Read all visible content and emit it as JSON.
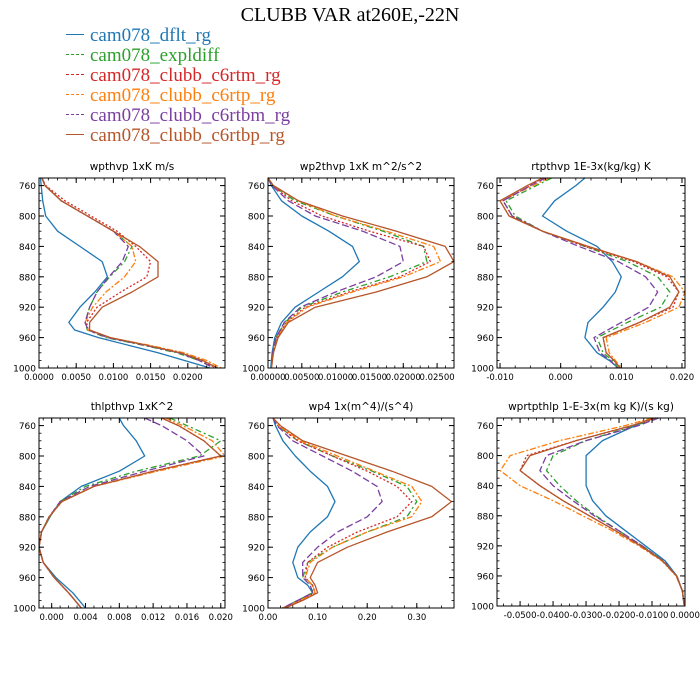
{
  "title": "CLUBB VAR at260E,-22N",
  "series_meta": [
    {
      "name": "cam078_dflt_rg",
      "color": "#1f77b4",
      "dash": ""
    },
    {
      "name": "cam078_expldiff",
      "color": "#2ca02c",
      "dash": "6,3,2,3"
    },
    {
      "name": "cam078_clubb_c6rtm_rg",
      "color": "#d62728",
      "dash": "2,2"
    },
    {
      "name": "cam078_clubb_c6rtp_rg",
      "color": "#ff7f0e",
      "dash": "6,2,2,2"
    },
    {
      "name": "cam078_clubb_c6rtbm_rg",
      "color": "#7b3fa0",
      "dash": "7,3"
    },
    {
      "name": "cam078_clubb_c6rtbp_rg",
      "color": "#b5562a",
      "dash": ""
    }
  ],
  "chart_data": [
    {
      "type": "line",
      "title": "wpthvp  1xK m/s",
      "xlim": [
        0,
        0.025
      ],
      "ylim": [
        1000,
        750
      ],
      "xticks": [
        "0.0000",
        "0.0050",
        "0.0100",
        "0.0150",
        "0.0200"
      ],
      "xtick_values": [
        0,
        0.005,
        0.01,
        0.015,
        0.02
      ],
      "yticks": [
        760,
        800,
        840,
        880,
        920,
        960,
        1000
      ],
      "y": [
        750,
        760,
        780,
        800,
        820,
        840,
        860,
        880,
        900,
        920,
        940,
        950,
        960,
        970,
        980,
        990,
        1000
      ],
      "series": [
        {
          "name": "cam078_dflt_rg",
          "values": [
            0.0002,
            0.0003,
            0.0005,
            0.0009,
            0.0025,
            0.0055,
            0.0085,
            0.0092,
            0.0075,
            0.0055,
            0.004,
            0.0048,
            0.008,
            0.012,
            0.016,
            0.0195,
            0.023
          ]
        },
        {
          "name": "cam078_expldiff",
          "values": [
            0.0004,
            0.0008,
            0.003,
            0.0065,
            0.01,
            0.0125,
            0.0115,
            0.0095,
            0.0078,
            0.0068,
            0.0062,
            0.0065,
            0.009,
            0.014,
            0.0185,
            0.0215,
            0.0235
          ]
        },
        {
          "name": "cam078_clubb_c6rtm_rg",
          "values": [
            0.0004,
            0.0009,
            0.0035,
            0.007,
            0.0105,
            0.013,
            0.015,
            0.0145,
            0.011,
            0.0078,
            0.0064,
            0.0066,
            0.0095,
            0.0145,
            0.019,
            0.0218,
            0.0238
          ]
        },
        {
          "name": "cam078_clubb_c6rtp_rg",
          "values": [
            0.0004,
            0.0008,
            0.003,
            0.0065,
            0.01,
            0.0125,
            0.013,
            0.0115,
            0.009,
            0.0072,
            0.0062,
            0.0066,
            0.0095,
            0.0148,
            0.0195,
            0.0225,
            0.0245
          ]
        },
        {
          "name": "cam078_clubb_c6rtbm_rg",
          "values": [
            0.0004,
            0.0008,
            0.003,
            0.0065,
            0.01,
            0.012,
            0.0112,
            0.0094,
            0.0078,
            0.0068,
            0.0062,
            0.0066,
            0.0092,
            0.0142,
            0.0188,
            0.0215,
            0.0235
          ]
        },
        {
          "name": "cam078_clubb_c6rtbp_rg",
          "values": [
            0.0004,
            0.0008,
            0.003,
            0.0065,
            0.01,
            0.0135,
            0.016,
            0.016,
            0.0125,
            0.0085,
            0.0068,
            0.0068,
            0.0096,
            0.0145,
            0.019,
            0.022,
            0.024
          ]
        }
      ]
    },
    {
      "type": "line",
      "title": "wp2thvp  1xK m^2/s^2",
      "xlim": [
        0,
        0.0275
      ],
      "ylim": [
        1000,
        750
      ],
      "xticks": [
        "0.00000",
        "0.00500",
        "0.01000",
        "0.01500",
        "0.02000",
        "0.02500"
      ],
      "xtick_values": [
        0,
        0.005,
        0.01,
        0.015,
        0.02,
        0.025
      ],
      "yticks": [
        760,
        800,
        840,
        880,
        920,
        960,
        1000
      ],
      "y": [
        750,
        760,
        780,
        800,
        820,
        840,
        860,
        880,
        900,
        920,
        940,
        960,
        980,
        1000
      ],
      "series": [
        {
          "name": "cam078_dflt_rg",
          "values": [
            0.0,
            0.0005,
            0.002,
            0.005,
            0.009,
            0.0125,
            0.0135,
            0.011,
            0.0075,
            0.004,
            0.002,
            0.001,
            0.0006,
            0.0004
          ]
        },
        {
          "name": "cam078_expldiff",
          "values": [
            0.0,
            0.0007,
            0.004,
            0.01,
            0.017,
            0.023,
            0.0235,
            0.018,
            0.011,
            0.005,
            0.0025,
            0.0012,
            0.0007,
            0.0005
          ]
        },
        {
          "name": "cam078_clubb_c6rtm_rg",
          "values": [
            0.0,
            0.0007,
            0.0035,
            0.008,
            0.015,
            0.023,
            0.024,
            0.0195,
            0.012,
            0.0055,
            0.0027,
            0.0013,
            0.0008,
            0.0005
          ]
        },
        {
          "name": "cam078_clubb_c6rtp_rg",
          "values": [
            0.0,
            0.0008,
            0.0045,
            0.01,
            0.0175,
            0.0245,
            0.0255,
            0.02,
            0.0125,
            0.0058,
            0.0028,
            0.0014,
            0.0008,
            0.0005
          ]
        },
        {
          "name": "cam078_clubb_c6rtbm_rg",
          "values": [
            0.0,
            0.0006,
            0.003,
            0.007,
            0.014,
            0.0195,
            0.02,
            0.016,
            0.01,
            0.0048,
            0.0024,
            0.0012,
            0.0007,
            0.0005
          ]
        },
        {
          "name": "cam078_clubb_c6rtbp_rg",
          "values": [
            0.0,
            0.0008,
            0.0045,
            0.011,
            0.019,
            0.0262,
            0.0275,
            0.0235,
            0.016,
            0.007,
            0.003,
            0.0015,
            0.0008,
            0.0005
          ]
        }
      ]
    },
    {
      "type": "line",
      "title": "rtpthvp  1E-3x(kg/kg) K",
      "xlim": [
        -0.0105,
        0.0205
      ],
      "ylim": [
        1000,
        750
      ],
      "xticks": [
        "-0.010",
        "0.000",
        "0.010",
        "0.020"
      ],
      "xtick_values": [
        -0.01,
        0,
        0.01,
        0.02
      ],
      "yticks": [
        760,
        800,
        840,
        880,
        920,
        960,
        1000
      ],
      "y": [
        750,
        760,
        780,
        800,
        820,
        840,
        860,
        880,
        900,
        920,
        940,
        960,
        980,
        990,
        1000
      ],
      "series": [
        {
          "name": "cam078_dflt_rg",
          "values": [
            0.004,
            0.0025,
            -0.001,
            -0.003,
            0.001,
            0.006,
            0.0085,
            0.01,
            0.009,
            0.007,
            0.0045,
            0.004,
            0.006,
            0.008,
            0.0095
          ]
        },
        {
          "name": "cam078_expldiff",
          "values": [
            -0.0015,
            -0.004,
            -0.009,
            -0.0075,
            -0.003,
            0.004,
            0.011,
            0.016,
            0.018,
            0.0165,
            0.011,
            0.006,
            0.007,
            0.0085,
            0.0095
          ]
        },
        {
          "name": "cam078_clubb_c6rtm_rg",
          "values": [
            -0.003,
            -0.005,
            -0.0095,
            -0.008,
            -0.003,
            0.004,
            0.012,
            0.0175,
            0.0195,
            0.0185,
            0.013,
            0.007,
            0.0075,
            0.0088,
            0.0098
          ]
        },
        {
          "name": "cam078_clubb_c6rtp_rg",
          "values": [
            -0.002,
            -0.0045,
            -0.01,
            -0.0085,
            -0.003,
            0.0045,
            0.0125,
            0.0185,
            0.0205,
            0.0195,
            0.014,
            0.0075,
            0.008,
            0.009,
            0.01
          ]
        },
        {
          "name": "cam078_clubb_c6rtbm_rg",
          "values": [
            -0.0025,
            -0.005,
            -0.0095,
            -0.008,
            -0.003,
            0.003,
            0.0095,
            0.014,
            0.016,
            0.0145,
            0.01,
            0.0055,
            0.0065,
            0.0082,
            0.0093
          ]
        },
        {
          "name": "cam078_clubb_c6rtbp_rg",
          "values": [
            -0.003,
            -0.0055,
            -0.01,
            -0.0085,
            -0.003,
            0.0045,
            0.0125,
            0.018,
            0.0195,
            0.018,
            0.013,
            0.007,
            0.0075,
            0.0088,
            0.0098
          ]
        }
      ]
    },
    {
      "type": "line",
      "title": "thlpthvp  1xK^2",
      "xlim": [
        -0.0015,
        0.0205
      ],
      "ylim": [
        1000,
        750
      ],
      "xticks": [
        "0.000",
        "0.004",
        "0.008",
        "0.012",
        "0.016",
        "0.020"
      ],
      "xtick_values": [
        0,
        0.004,
        0.008,
        0.012,
        0.016,
        0.02
      ],
      "yticks": [
        760,
        800,
        840,
        880,
        920,
        960,
        1000
      ],
      "y": [
        750,
        760,
        780,
        800,
        820,
        840,
        860,
        880,
        900,
        920,
        940,
        960,
        980,
        1000
      ],
      "series": [
        {
          "name": "cam078_dflt_rg",
          "values": [
            0.008,
            0.0085,
            0.01,
            0.011,
            0.008,
            0.0035,
            0.001,
            -0.0002,
            -0.0012,
            -0.0015,
            -0.001,
            0.0005,
            0.0025,
            0.004
          ]
        },
        {
          "name": "cam078_expldiff",
          "values": [
            0.014,
            0.016,
            0.02,
            0.0175,
            0.01,
            0.004,
            0.001,
            -0.0002,
            -0.0012,
            -0.0015,
            -0.001,
            0.0003,
            0.002,
            0.0035
          ]
        },
        {
          "name": "cam078_clubb_c6rtm_rg",
          "values": [
            0.013,
            0.015,
            0.018,
            0.02,
            0.012,
            0.005,
            0.0012,
            -0.0003,
            -0.0012,
            -0.0015,
            -0.001,
            0.0003,
            0.002,
            0.0035
          ]
        },
        {
          "name": "cam078_clubb_c6rtp_rg",
          "values": [
            0.0135,
            0.0155,
            0.019,
            0.0205,
            0.0125,
            0.005,
            0.0012,
            -0.0003,
            -0.0012,
            -0.0015,
            -0.001,
            0.0003,
            0.002,
            0.0035
          ]
        },
        {
          "name": "cam078_clubb_c6rtbm_rg",
          "values": [
            0.011,
            0.013,
            0.016,
            0.018,
            0.011,
            0.0045,
            0.001,
            -0.0003,
            -0.0012,
            -0.0015,
            -0.001,
            0.0003,
            0.002,
            0.0035
          ]
        },
        {
          "name": "cam078_clubb_c6rtbp_rg",
          "values": [
            0.013,
            0.015,
            0.018,
            0.02,
            0.012,
            0.005,
            0.0012,
            -0.0003,
            -0.0012,
            -0.0015,
            -0.001,
            0.0003,
            0.002,
            0.0035
          ]
        }
      ]
    },
    {
      "type": "line",
      "title": "wp4  1x(m^4)/(s^4)",
      "xlim": [
        0,
        0.375
      ],
      "ylim": [
        1000,
        750
      ],
      "xticks": [
        "0.00",
        "0.10",
        "0.20",
        "0.30"
      ],
      "xtick_values": [
        0,
        0.1,
        0.2,
        0.3
      ],
      "yticks": [
        760,
        800,
        840,
        880,
        920,
        960,
        1000
      ],
      "y": [
        750,
        760,
        780,
        800,
        820,
        840,
        860,
        880,
        900,
        920,
        940,
        960,
        970,
        980,
        990,
        1000
      ],
      "series": [
        {
          "name": "cam078_dflt_rg",
          "values": [
            0.01,
            0.015,
            0.03,
            0.055,
            0.085,
            0.12,
            0.135,
            0.12,
            0.085,
            0.06,
            0.05,
            0.06,
            0.08,
            0.09,
            0.06,
            0.03
          ]
        },
        {
          "name": "cam078_expldiff",
          "values": [
            0.01,
            0.02,
            0.06,
            0.13,
            0.21,
            0.28,
            0.3,
            0.28,
            0.2,
            0.13,
            0.08,
            0.07,
            0.09,
            0.09,
            0.06,
            0.03
          ]
        },
        {
          "name": "cam078_clubb_c6rtm_rg",
          "values": [
            0.01,
            0.02,
            0.06,
            0.13,
            0.2,
            0.26,
            0.29,
            0.26,
            0.18,
            0.12,
            0.08,
            0.075,
            0.09,
            0.095,
            0.065,
            0.03
          ]
        },
        {
          "name": "cam078_clubb_c6rtp_rg",
          "values": [
            0.01,
            0.022,
            0.065,
            0.14,
            0.215,
            0.29,
            0.31,
            0.29,
            0.2,
            0.13,
            0.085,
            0.075,
            0.09,
            0.095,
            0.065,
            0.03
          ]
        },
        {
          "name": "cam078_clubb_c6rtbm_rg",
          "values": [
            0.01,
            0.018,
            0.05,
            0.11,
            0.17,
            0.22,
            0.23,
            0.2,
            0.14,
            0.1,
            0.07,
            0.07,
            0.085,
            0.09,
            0.06,
            0.03
          ]
        },
        {
          "name": "cam078_clubb_c6rtbp_rg",
          "values": [
            0.01,
            0.025,
            0.07,
            0.16,
            0.25,
            0.33,
            0.37,
            0.33,
            0.24,
            0.16,
            0.1,
            0.085,
            0.095,
            0.1,
            0.07,
            0.035
          ]
        }
      ]
    },
    {
      "type": "line",
      "title": "wprtpthlp  1-E-3x(m kg K)/(s kg)",
      "xlim": [
        -0.057,
        0.0
      ],
      "ylim": [
        1000,
        750
      ],
      "xticks": [
        "-0.0500",
        "-0.0400",
        "-0.0300",
        "-0.0200",
        "-0.0100",
        "0.0000"
      ],
      "xtick_values": [
        -0.05,
        -0.04,
        -0.03,
        -0.02,
        -0.01,
        0
      ],
      "yticks": [
        760,
        800,
        840,
        880,
        920,
        960,
        1000
      ],
      "y": [
        750,
        760,
        780,
        800,
        820,
        840,
        860,
        880,
        900,
        920,
        940,
        960,
        980,
        1000
      ],
      "series": [
        {
          "name": "cam078_dflt_rg",
          "values": [
            -0.01,
            -0.015,
            -0.025,
            -0.03,
            -0.03,
            -0.03,
            -0.028,
            -0.024,
            -0.018,
            -0.012,
            -0.006,
            -0.0025,
            -0.0008,
            -0.0002
          ]
        },
        {
          "name": "cam078_expldiff",
          "values": [
            -0.008,
            -0.015,
            -0.03,
            -0.04,
            -0.042,
            -0.038,
            -0.033,
            -0.027,
            -0.02,
            -0.013,
            -0.0065,
            -0.0025,
            -0.0008,
            -0.0002
          ]
        },
        {
          "name": "cam078_clubb_c6rtm_rg",
          "values": [
            -0.009,
            -0.016,
            -0.033,
            -0.048,
            -0.05,
            -0.044,
            -0.037,
            -0.029,
            -0.021,
            -0.0135,
            -0.0068,
            -0.0026,
            -0.0008,
            -0.0002
          ]
        },
        {
          "name": "cam078_clubb_c6rtp_rg",
          "values": [
            -0.01,
            -0.018,
            -0.038,
            -0.053,
            -0.056,
            -0.05,
            -0.04,
            -0.031,
            -0.022,
            -0.014,
            -0.007,
            -0.0027,
            -0.0008,
            -0.0002
          ]
        },
        {
          "name": "cam078_clubb_c6rtbm_rg",
          "values": [
            -0.008,
            -0.014,
            -0.03,
            -0.042,
            -0.044,
            -0.04,
            -0.034,
            -0.0275,
            -0.02,
            -0.013,
            -0.0066,
            -0.0025,
            -0.0008,
            -0.0002
          ]
        },
        {
          "name": "cam078_clubb_c6rtbp_rg",
          "values": [
            -0.009,
            -0.016,
            -0.033,
            -0.047,
            -0.05,
            -0.044,
            -0.037,
            -0.029,
            -0.021,
            -0.0135,
            -0.0068,
            -0.0026,
            -0.0008,
            -0.0002
          ]
        }
      ]
    }
  ]
}
